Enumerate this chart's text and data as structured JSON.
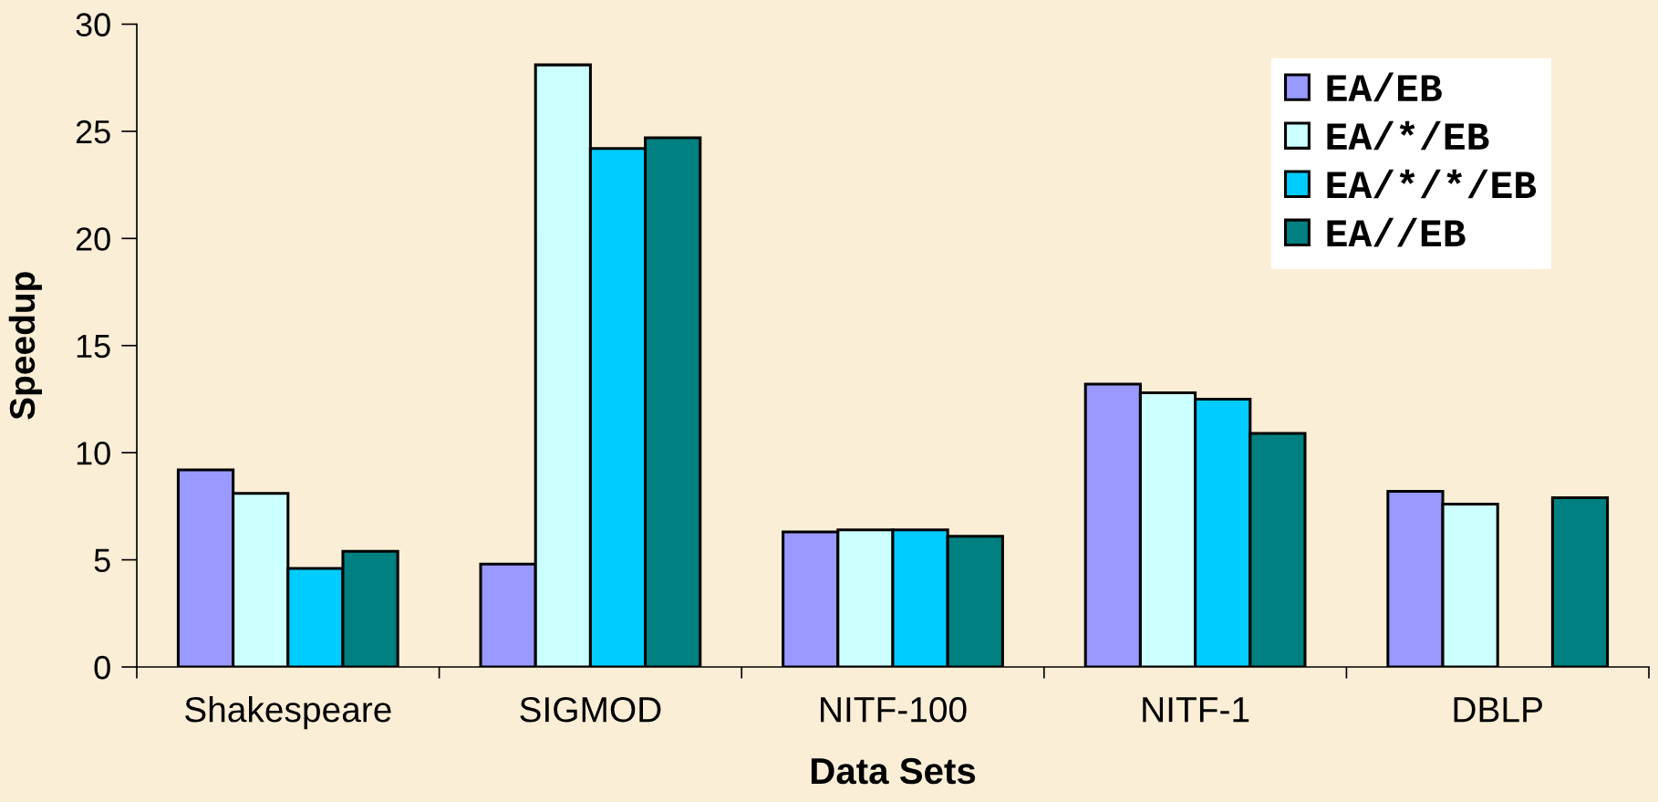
{
  "chart_data": {
    "type": "bar",
    "xlabel": "Data Sets",
    "ylabel": "Speedup",
    "categories": [
      "Shakespeare",
      "SIGMOD",
      "NITF-100",
      "NITF-1",
      "DBLP"
    ],
    "series": [
      {
        "name": "EA/EB",
        "color": "#9999ff",
        "values": [
          9.2,
          4.8,
          6.3,
          13.2,
          8.2
        ]
      },
      {
        "name": "EA/*/EB",
        "color": "#ccffff",
        "values": [
          8.1,
          28.1,
          6.4,
          12.8,
          7.6
        ]
      },
      {
        "name": "EA/*/*/EB",
        "color": "#00ccff",
        "values": [
          4.6,
          24.2,
          6.4,
          12.5,
          null
        ]
      },
      {
        "name": "EA//EB",
        "color": "#008080",
        "values": [
          5.4,
          24.7,
          6.1,
          10.9,
          7.9
        ]
      }
    ],
    "ylim": [
      0,
      30
    ],
    "yticks": [
      0,
      5,
      10,
      15,
      20,
      25,
      30
    ],
    "grid": false,
    "legend": "top right"
  }
}
